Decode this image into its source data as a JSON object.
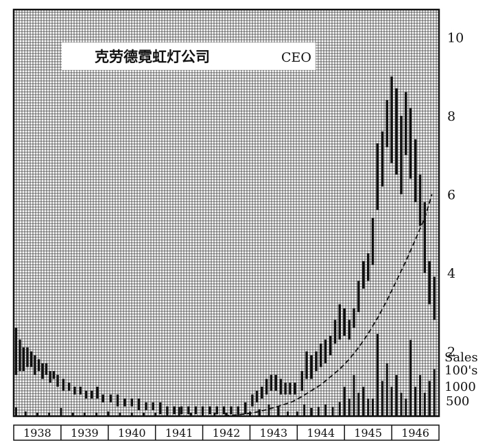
{
  "chart_data": {
    "type": "bar",
    "subtype": "high-low price chart with volume bars",
    "title": "克劳德霓虹灯公司",
    "title_suffix": "CEO",
    "price_axis": {
      "ylim": [
        0,
        10.6
      ],
      "ticks": [
        2,
        4,
        6,
        8,
        10
      ],
      "position": "right",
      "grid": true
    },
    "volume_axis": {
      "labels": [
        "Sales",
        "100's",
        "1000",
        "500"
      ],
      "ylim": [
        0,
        1600
      ],
      "ticks": [
        500,
        1000
      ]
    },
    "x_axis": {
      "categories": [
        "1938",
        "1939",
        "1940",
        "1941",
        "1942",
        "1943",
        "1944",
        "1945",
        "1946"
      ],
      "xlim": [
        1938.0,
        1947.0
      ]
    },
    "price_series": {
      "name": "",
      "x": [
        1938.05,
        1938.13,
        1938.21,
        1938.29,
        1938.37,
        1938.45,
        1938.53,
        1938.61,
        1938.69,
        1938.77,
        1938.85,
        1938.93,
        1939.05,
        1939.17,
        1939.29,
        1939.41,
        1939.53,
        1939.65,
        1939.77,
        1939.89,
        1940.05,
        1940.2,
        1940.35,
        1940.5,
        1940.65,
        1940.8,
        1940.95,
        1941.1,
        1941.25,
        1941.4,
        1941.55,
        1941.7,
        1941.85,
        1942.0,
        1942.15,
        1942.3,
        1942.45,
        1942.6,
        1942.75,
        1942.9,
        1943.05,
        1943.15,
        1943.25,
        1943.35,
        1943.45,
        1943.55,
        1943.65,
        1943.75,
        1943.85,
        1943.95,
        1944.1,
        1944.2,
        1944.3,
        1944.4,
        1944.5,
        1944.6,
        1944.7,
        1944.8,
        1944.9,
        1945.0,
        1945.1,
        1945.2,
        1945.3,
        1945.4,
        1945.5,
        1945.6,
        1945.7,
        1945.8,
        1945.9,
        1946.0,
        1946.1,
        1946.2,
        1946.3,
        1946.4,
        1946.5,
        1946.6,
        1946.7,
        1946.8,
        1946.9
      ],
      "high": [
        2.6,
        2.3,
        2.1,
        2.1,
        2.0,
        1.9,
        1.8,
        1.7,
        1.7,
        1.5,
        1.5,
        1.4,
        1.3,
        1.2,
        1.1,
        1.1,
        1.0,
        1.0,
        1.1,
        0.9,
        0.9,
        0.9,
        0.8,
        0.8,
        0.8,
        0.7,
        0.7,
        0.7,
        0.6,
        0.6,
        0.6,
        0.6,
        0.6,
        0.6,
        0.6,
        0.6,
        0.6,
        0.6,
        0.6,
        0.7,
        0.9,
        1.0,
        1.1,
        1.3,
        1.4,
        1.4,
        1.3,
        1.2,
        1.2,
        1.2,
        1.5,
        2.0,
        1.9,
        2.0,
        2.2,
        2.3,
        2.4,
        2.8,
        3.2,
        3.1,
        2.8,
        3.1,
        3.8,
        4.3,
        4.5,
        5.4,
        7.3,
        7.6,
        8.4,
        9.0,
        8.7,
        8.0,
        8.6,
        8.2,
        7.4,
        6.5,
        5.8,
        4.3,
        3.9
      ],
      "low": [
        1.4,
        1.5,
        1.5,
        1.6,
        1.6,
        1.4,
        1.5,
        1.3,
        1.4,
        1.2,
        1.3,
        1.1,
        1.0,
        1.0,
        0.9,
        0.9,
        0.8,
        0.8,
        0.8,
        0.7,
        0.7,
        0.6,
        0.6,
        0.6,
        0.5,
        0.5,
        0.5,
        0.4,
        0.4,
        0.4,
        0.4,
        0.4,
        0.4,
        0.4,
        0.4,
        0.4,
        0.4,
        0.4,
        0.4,
        0.4,
        0.6,
        0.7,
        0.8,
        0.9,
        1.0,
        1.0,
        0.9,
        0.9,
        0.9,
        0.9,
        1.0,
        1.3,
        1.3,
        1.5,
        1.6,
        1.7,
        1.9,
        2.2,
        2.3,
        2.4,
        2.3,
        2.6,
        3.0,
        3.6,
        3.8,
        4.2,
        5.6,
        6.2,
        7.2,
        6.8,
        6.5,
        6.0,
        7.0,
        6.4,
        5.8,
        5.2,
        4.0,
        3.2,
        2.8
      ]
    },
    "trend_line": {
      "name": "",
      "x": [
        1942.3,
        1942.7,
        1943.0,
        1943.3,
        1943.6,
        1943.9,
        1944.1,
        1944.3,
        1944.5,
        1944.7,
        1944.9,
        1945.1,
        1945.3,
        1945.5,
        1945.7,
        1945.9,
        1946.1,
        1946.3,
        1946.5,
        1946.7,
        1946.85
      ],
      "y": [
        0.35,
        0.38,
        0.42,
        0.5,
        0.6,
        0.72,
        0.85,
        1.0,
        1.15,
        1.35,
        1.55,
        1.8,
        2.1,
        2.45,
        2.85,
        3.3,
        3.8,
        4.3,
        4.85,
        5.4,
        6.0
      ]
    },
    "volume_series": {
      "name": "",
      "x": [
        1938.05,
        1938.25,
        1938.5,
        1938.75,
        1939.0,
        1939.25,
        1939.5,
        1939.75,
        1940.0,
        1940.25,
        1940.5,
        1940.75,
        1941.0,
        1941.25,
        1941.5,
        1941.75,
        1942.0,
        1942.25,
        1942.5,
        1942.75,
        1943.0,
        1943.2,
        1943.4,
        1943.6,
        1943.8,
        1944.0,
        1944.15,
        1944.3,
        1944.45,
        1944.6,
        1944.75,
        1944.9,
        1945.0,
        1945.1,
        1945.2,
        1945.3,
        1945.4,
        1945.5,
        1945.6,
        1945.7,
        1945.8,
        1945.9,
        1946.0,
        1946.1,
        1946.2,
        1946.3,
        1946.4,
        1946.5,
        1946.6,
        1946.7,
        1946.8,
        1946.9
      ],
      "values": [
        150,
        80,
        60,
        60,
        140,
        60,
        60,
        60,
        80,
        60,
        60,
        60,
        60,
        60,
        160,
        60,
        60,
        60,
        60,
        60,
        80,
        120,
        200,
        160,
        80,
        80,
        200,
        140,
        160,
        200,
        160,
        240,
        500,
        300,
        700,
        400,
        500,
        300,
        300,
        1400,
        600,
        900,
        500,
        700,
        400,
        300,
        1300,
        500,
        700,
        400,
        600,
        800
      ]
    }
  },
  "colors": {
    "ink": "#111111",
    "grid": "#3a3a3a",
    "paper": "#ffffff"
  }
}
